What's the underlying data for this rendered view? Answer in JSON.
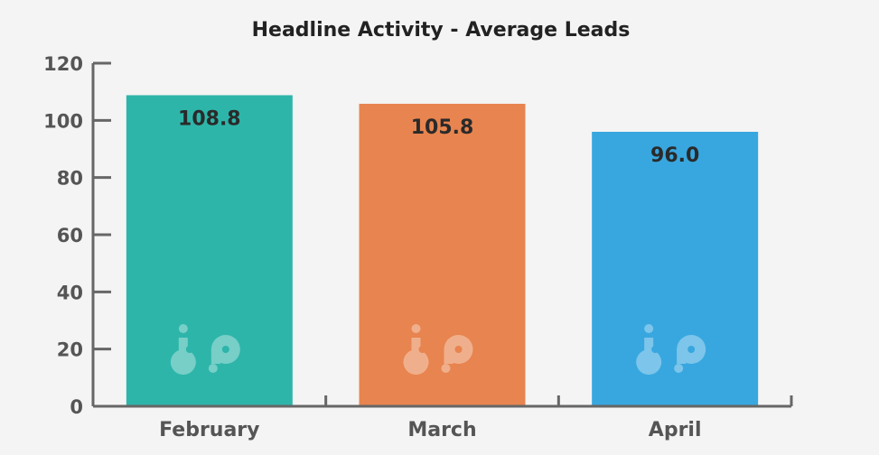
{
  "chart_data": {
    "type": "bar",
    "title": "Headline Activity - Average Leads",
    "xlabel": "",
    "ylabel": "",
    "categories": [
      "February",
      "March",
      "April"
    ],
    "values": [
      108.8,
      105.8,
      96.0
    ],
    "data_labels": [
      "108.8",
      "105.8",
      "96.0"
    ],
    "colors": [
      "#2eb5aa",
      "#e8844f",
      "#38a7df"
    ],
    "ylim": [
      0,
      120
    ],
    "yticks": [
      0,
      20,
      40,
      60,
      80,
      100,
      120
    ],
    "grid": false,
    "legend": "none",
    "watermark_icon": "bp-logo-icon"
  }
}
